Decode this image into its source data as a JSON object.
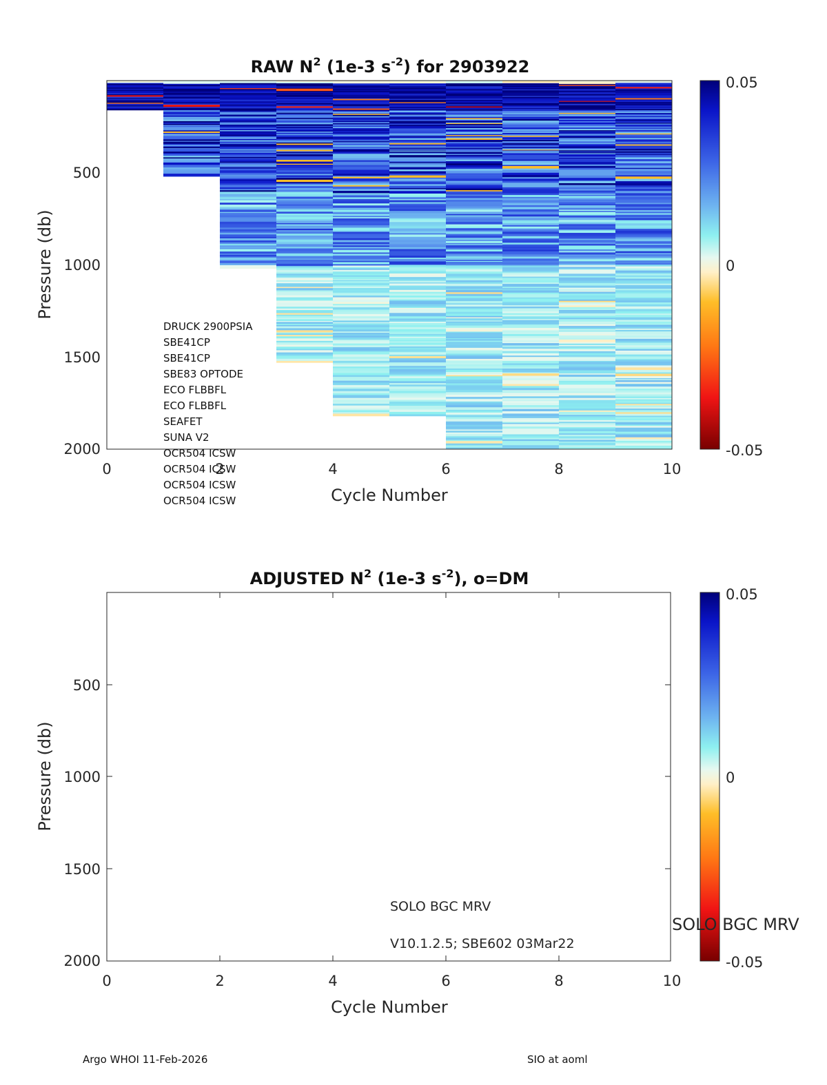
{
  "chart_data": [
    {
      "type": "heatmap",
      "title_parts": [
        "RAW N",
        "2",
        " (1e-3 s",
        "-2",
        ") for 2903922"
      ],
      "xlabel": "Cycle Number",
      "ylabel": "Pressure (db)",
      "xlim": [
        0,
        10
      ],
      "ylim": [
        0,
        2000
      ],
      "y_reversed": true,
      "xticks": [
        "0",
        "2",
        "4",
        "6",
        "8",
        "10"
      ],
      "yticks": [
        "500",
        "1000",
        "1500",
        "2000"
      ],
      "colorbar": {
        "min": -0.05,
        "max": 0.05,
        "ticks": [
          "0.05",
          "0",
          "-0.05"
        ]
      },
      "profiles": [
        {
          "cycle": 0,
          "max_pressure": 160
        },
        {
          "cycle": 1,
          "max_pressure": 520
        },
        {
          "cycle": 2,
          "max_pressure": 1020
        },
        {
          "cycle": 3,
          "max_pressure": 1530
        },
        {
          "cycle": 4,
          "max_pressure": 1820
        },
        {
          "cycle": 5,
          "max_pressure": 1820
        },
        {
          "cycle": 6,
          "max_pressure": 2000
        },
        {
          "cycle": 7,
          "max_pressure": 2000
        },
        {
          "cycle": 8,
          "max_pressure": 2000
        },
        {
          "cycle": 9,
          "max_pressure": 2000
        }
      ],
      "sensors": [
        "DRUCK 2900PSIA",
        "SBE41CP",
        "SBE41CP",
        "SBE83 OPTODE",
        "ECO FLBBFL",
        "ECO FLBBFL",
        "SEAFET",
        "SUNA V2",
        "OCR504 ICSW",
        "OCR504 ICSW",
        "OCR504 ICSW",
        "OCR504 ICSW"
      ]
    },
    {
      "type": "heatmap",
      "title_parts": [
        "ADJUSTED N",
        "2",
        " (1e-3 s",
        "-2",
        "), o=DM"
      ],
      "xlabel": "Cycle Number",
      "ylabel": "Pressure (db)",
      "xlim": [
        0,
        10
      ],
      "ylim": [
        0,
        2000
      ],
      "y_reversed": true,
      "xticks": [
        "0",
        "2",
        "4",
        "6",
        "8",
        "10"
      ],
      "yticks": [
        "500",
        "1000",
        "1500",
        "2000"
      ],
      "colorbar": {
        "min": -0.05,
        "max": 0.05,
        "ticks": [
          "0.05",
          "0",
          "-0.05"
        ]
      },
      "profiles": [],
      "annotation_lines": [
        "SOLO BGC MRV",
        "V10.1.2.5; SBE602 03Mar22"
      ],
      "side_label": "SOLO BGC MRV"
    }
  ],
  "footer": {
    "left": "Argo WHOI 11-Feb-2026",
    "right": "SIO at aoml"
  }
}
